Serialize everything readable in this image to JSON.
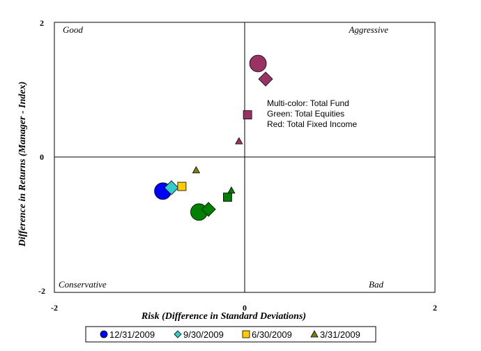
{
  "chart_data": {
    "type": "scatter",
    "xlabel": "Risk (Difference in Standard Deviations)",
    "ylabel": "Difference in Returns (Manager - Index)",
    "xlim": [
      -2,
      2
    ],
    "ylim": [
      -2,
      2
    ],
    "x_ticks": [
      "-2",
      "0",
      "2"
    ],
    "y_ticks": [
      "2",
      "0",
      "-2"
    ],
    "quadrant_labels": {
      "top_left": "Good",
      "top_right": "Aggressive",
      "bottom_left": "Conservative",
      "bottom_right": "Bad"
    },
    "annotations": [
      "Multi-color: Total Fund",
      "Green: Total Equities",
      "Red: Total Fixed Income"
    ],
    "grid": false,
    "legend_position": "bottom",
    "series": [
      {
        "name": "12/31/2009",
        "marker": "circle",
        "size": "large"
      },
      {
        "name": "9/30/2009",
        "marker": "diamond",
        "size": "medium"
      },
      {
        "name": "6/30/2009",
        "marker": "square",
        "size": "small"
      },
      {
        "name": "3/31/2009",
        "marker": "triangle",
        "size": "smallest"
      }
    ],
    "groups": [
      {
        "color": "#993366",
        "points": [
          {
            "series": "12/31/2009",
            "x": 0.14,
            "y": 1.39
          },
          {
            "series": "9/30/2009",
            "x": 0.22,
            "y": 1.16
          },
          {
            "series": "6/30/2009",
            "x": 0.03,
            "y": 0.63
          },
          {
            "series": "3/31/2009",
            "x": -0.06,
            "y": 0.24
          }
        ]
      },
      {
        "color": "#008000",
        "points": [
          {
            "series": "12/31/2009",
            "x": -0.48,
            "y": -0.81
          },
          {
            "series": "9/30/2009",
            "x": -0.38,
            "y": -0.77
          },
          {
            "series": "6/30/2009",
            "x": -0.18,
            "y": -0.59
          },
          {
            "series": "3/31/2009",
            "x": -0.14,
            "y": -0.49
          }
        ]
      },
      {
        "color": "multi",
        "points": [
          {
            "series": "12/31/2009",
            "x": -0.86,
            "y": -0.5,
            "color": "#0000ff"
          },
          {
            "series": "9/30/2009",
            "x": -0.77,
            "y": -0.45,
            "color": "#33cccc"
          },
          {
            "series": "6/30/2009",
            "x": -0.66,
            "y": -0.43,
            "color": "#ffcc00"
          },
          {
            "series": "3/31/2009",
            "x": -0.51,
            "y": -0.19,
            "color": "#808000"
          }
        ]
      }
    ],
    "legend_colors": [
      "#0000ff",
      "#33cccc",
      "#ffcc00",
      "#808000"
    ]
  }
}
